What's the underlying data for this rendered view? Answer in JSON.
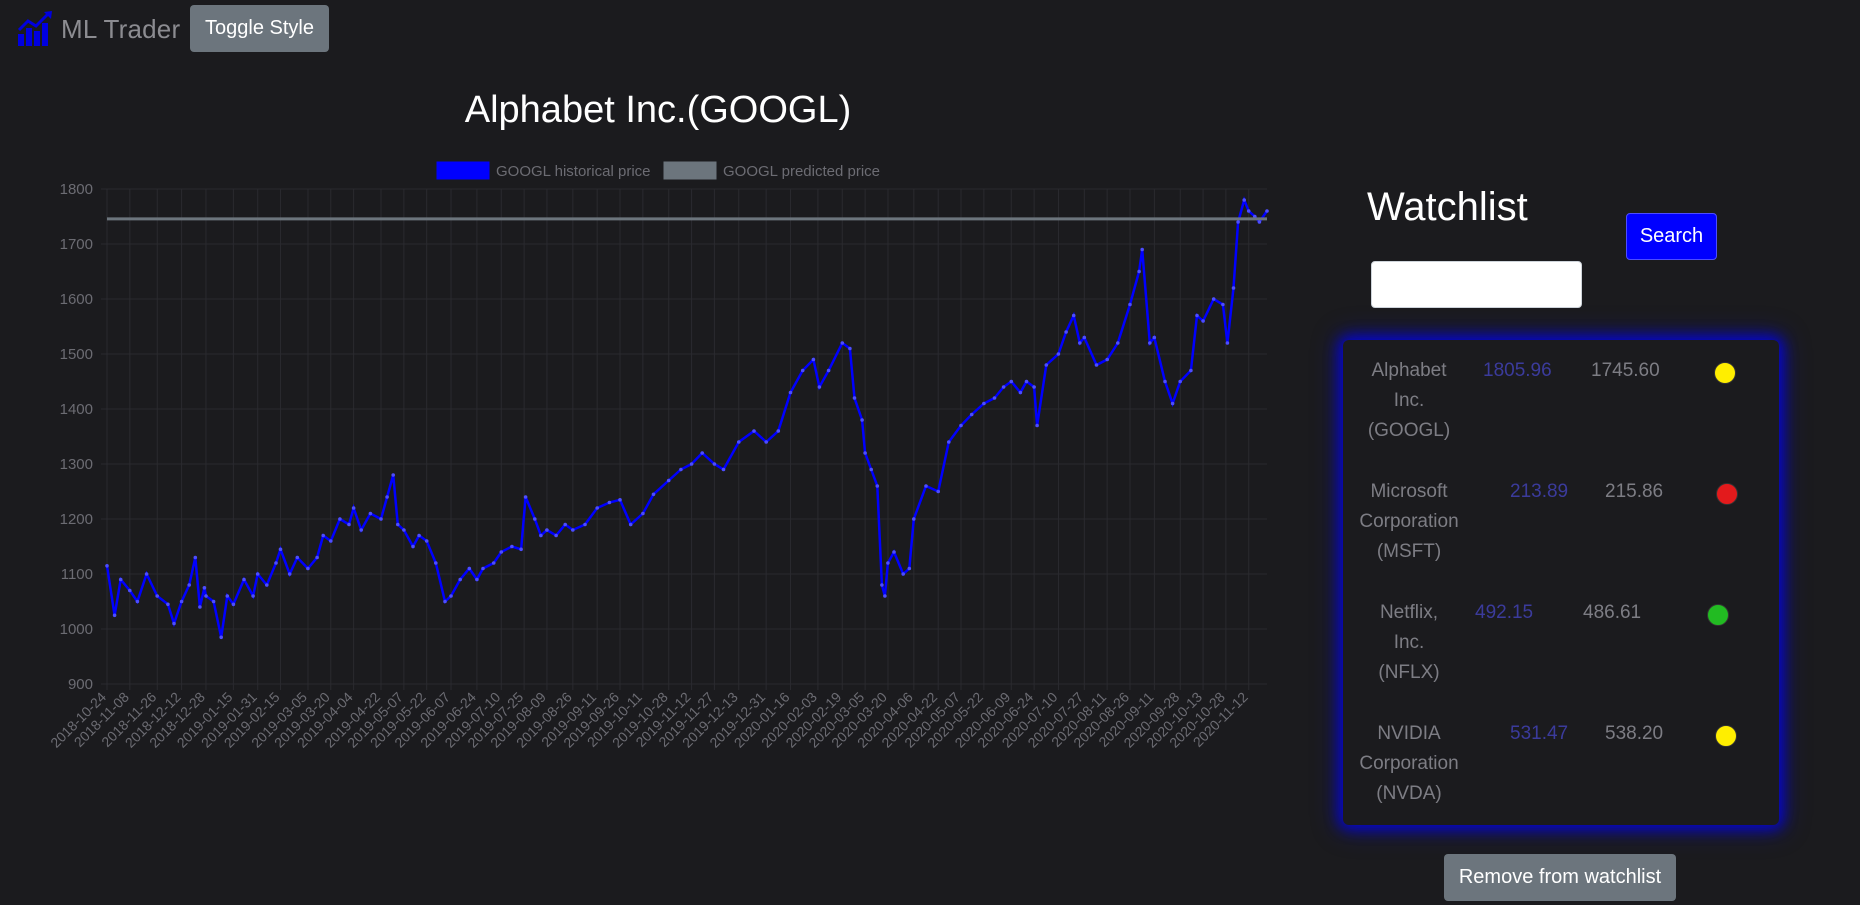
{
  "navbar": {
    "brand_text": "ML Trader",
    "brand_icon": "chart-bar-icon",
    "toggle_label": "Toggle Style"
  },
  "chart_data": {
    "type": "line",
    "title": "Alphabet Inc.(GOOGL)",
    "legend": [
      "GOOGL historical price",
      "GOOGL predicted price"
    ],
    "legend_placement": "top",
    "grid": true,
    "ylim": [
      900,
      1800
    ],
    "yticks": [
      900,
      1000,
      1100,
      1200,
      1300,
      1400,
      1500,
      1600,
      1700,
      1800
    ],
    "xticks": [
      "2018-10-24",
      "2018-11-08",
      "2018-11-26",
      "2018-12-12",
      "2018-12-28",
      "2019-01-15",
      "2019-01-31",
      "2019-02-15",
      "2019-03-05",
      "2019-03-20",
      "2019-04-04",
      "2019-04-22",
      "2019-05-07",
      "2019-05-22",
      "2019-06-07",
      "2019-06-24",
      "2019-07-10",
      "2019-07-25",
      "2019-08-09",
      "2019-08-26",
      "2019-09-11",
      "2019-09-26",
      "2019-10-11",
      "2019-10-28",
      "2019-11-12",
      "2019-11-27",
      "2019-12-13",
      "2019-12-31",
      "2020-01-16",
      "2020-02-03",
      "2020-02-19",
      "2020-03-05",
      "2020-03-20",
      "2020-04-06",
      "2020-04-22",
      "2020-05-07",
      "2020-05-22",
      "2020-06-09",
      "2020-06-24",
      "2020-07-10",
      "2020-07-27",
      "2020-08-11",
      "2020-08-26",
      "2020-09-11",
      "2020-09-28",
      "2020-10-13",
      "2020-10-28",
      "2020-11-12"
    ],
    "series": [
      {
        "name": "GOOGL historical price",
        "color": "#0000ff",
        "points": [
          [
            "2018-10-24",
            1115
          ],
          [
            "2018-10-29",
            1025
          ],
          [
            "2018-11-02",
            1090
          ],
          [
            "2018-11-08",
            1070
          ],
          [
            "2018-11-13",
            1050
          ],
          [
            "2018-11-19",
            1100
          ],
          [
            "2018-11-26",
            1060
          ],
          [
            "2018-12-03",
            1045
          ],
          [
            "2018-12-07",
            1010
          ],
          [
            "2018-12-12",
            1050
          ],
          [
            "2018-12-17",
            1080
          ],
          [
            "2018-12-21",
            1130
          ],
          [
            "2018-12-24",
            1040
          ],
          [
            "2018-12-27",
            1075
          ],
          [
            "2018-12-28",
            1060
          ],
          [
            "2019-01-02",
            1050
          ],
          [
            "2019-01-07",
            985
          ],
          [
            "2019-01-11",
            1060
          ],
          [
            "2019-01-15",
            1045
          ],
          [
            "2019-01-22",
            1090
          ],
          [
            "2019-01-28",
            1060
          ],
          [
            "2019-01-31",
            1100
          ],
          [
            "2019-02-06",
            1080
          ],
          [
            "2019-02-12",
            1120
          ],
          [
            "2019-02-15",
            1145
          ],
          [
            "2019-02-21",
            1100
          ],
          [
            "2019-02-26",
            1130
          ],
          [
            "2019-03-05",
            1110
          ],
          [
            "2019-03-11",
            1130
          ],
          [
            "2019-03-15",
            1170
          ],
          [
            "2019-03-20",
            1160
          ],
          [
            "2019-03-26",
            1200
          ],
          [
            "2019-04-01",
            1190
          ],
          [
            "2019-04-04",
            1220
          ],
          [
            "2019-04-09",
            1180
          ],
          [
            "2019-04-15",
            1210
          ],
          [
            "2019-04-22",
            1200
          ],
          [
            "2019-04-26",
            1240
          ],
          [
            "2019-04-30",
            1280
          ],
          [
            "2019-05-03",
            1190
          ],
          [
            "2019-05-07",
            1180
          ],
          [
            "2019-05-13",
            1150
          ],
          [
            "2019-05-17",
            1170
          ],
          [
            "2019-05-22",
            1160
          ],
          [
            "2019-05-28",
            1120
          ],
          [
            "2019-06-03",
            1050
          ],
          [
            "2019-06-07",
            1060
          ],
          [
            "2019-06-13",
            1090
          ],
          [
            "2019-06-19",
            1110
          ],
          [
            "2019-06-24",
            1090
          ],
          [
            "2019-06-28",
            1110
          ],
          [
            "2019-07-05",
            1120
          ],
          [
            "2019-07-10",
            1140
          ],
          [
            "2019-07-17",
            1150
          ],
          [
            "2019-07-23",
            1145
          ],
          [
            "2019-07-26",
            1240
          ],
          [
            "2019-08-01",
            1200
          ],
          [
            "2019-08-05",
            1170
          ],
          [
            "2019-08-09",
            1180
          ],
          [
            "2019-08-15",
            1170
          ],
          [
            "2019-08-21",
            1190
          ],
          [
            "2019-08-26",
            1180
          ],
          [
            "2019-09-03",
            1190
          ],
          [
            "2019-09-11",
            1220
          ],
          [
            "2019-09-19",
            1230
          ],
          [
            "2019-09-26",
            1235
          ],
          [
            "2019-10-03",
            1190
          ],
          [
            "2019-10-11",
            1210
          ],
          [
            "2019-10-18",
            1245
          ],
          [
            "2019-10-28",
            1270
          ],
          [
            "2019-11-05",
            1290
          ],
          [
            "2019-11-12",
            1300
          ],
          [
            "2019-11-19",
            1320
          ],
          [
            "2019-11-27",
            1300
          ],
          [
            "2019-12-03",
            1290
          ],
          [
            "2019-12-13",
            1340
          ],
          [
            "2019-12-23",
            1360
          ],
          [
            "2019-12-31",
            1340
          ],
          [
            "2020-01-08",
            1360
          ],
          [
            "2020-01-16",
            1430
          ],
          [
            "2020-01-24",
            1470
          ],
          [
            "2020-01-31",
            1490
          ],
          [
            "2020-02-04",
            1440
          ],
          [
            "2020-02-10",
            1470
          ],
          [
            "2020-02-19",
            1520
          ],
          [
            "2020-02-24",
            1510
          ],
          [
            "2020-02-27",
            1420
          ],
          [
            "2020-03-03",
            1380
          ],
          [
            "2020-03-05",
            1320
          ],
          [
            "2020-03-09",
            1290
          ],
          [
            "2020-03-13",
            1260
          ],
          [
            "2020-03-16",
            1080
          ],
          [
            "2020-03-18",
            1060
          ],
          [
            "2020-03-20",
            1120
          ],
          [
            "2020-03-24",
            1140
          ],
          [
            "2020-03-30",
            1100
          ],
          [
            "2020-04-03",
            1110
          ],
          [
            "2020-04-06",
            1200
          ],
          [
            "2020-04-14",
            1260
          ],
          [
            "2020-04-22",
            1250
          ],
          [
            "2020-04-29",
            1340
          ],
          [
            "2020-05-07",
            1370
          ],
          [
            "2020-05-14",
            1390
          ],
          [
            "2020-05-22",
            1410
          ],
          [
            "2020-05-29",
            1420
          ],
          [
            "2020-06-04",
            1440
          ],
          [
            "2020-06-09",
            1450
          ],
          [
            "2020-06-15",
            1430
          ],
          [
            "2020-06-19",
            1450
          ],
          [
            "2020-06-24",
            1440
          ],
          [
            "2020-06-26",
            1370
          ],
          [
            "2020-07-02",
            1480
          ],
          [
            "2020-07-10",
            1500
          ],
          [
            "2020-07-15",
            1540
          ],
          [
            "2020-07-20",
            1570
          ],
          [
            "2020-07-24",
            1520
          ],
          [
            "2020-07-27",
            1530
          ],
          [
            "2020-08-04",
            1480
          ],
          [
            "2020-08-11",
            1490
          ],
          [
            "2020-08-18",
            1520
          ],
          [
            "2020-08-26",
            1590
          ],
          [
            "2020-09-01",
            1650
          ],
          [
            "2020-09-03",
            1690
          ],
          [
            "2020-09-08",
            1520
          ],
          [
            "2020-09-11",
            1530
          ],
          [
            "2020-09-18",
            1450
          ],
          [
            "2020-09-23",
            1410
          ],
          [
            "2020-09-28",
            1450
          ],
          [
            "2020-10-05",
            1470
          ],
          [
            "2020-10-09",
            1570
          ],
          [
            "2020-10-13",
            1560
          ],
          [
            "2020-10-20",
            1600
          ],
          [
            "2020-10-26",
            1590
          ],
          [
            "2020-10-29",
            1520
          ],
          [
            "2020-11-02",
            1620
          ],
          [
            "2020-11-05",
            1740
          ],
          [
            "2020-11-09",
            1780
          ],
          [
            "2020-11-12",
            1760
          ],
          [
            "2020-11-16",
            1750
          ],
          [
            "2020-11-19",
            1740
          ],
          [
            "2020-11-24",
            1760
          ]
        ]
      },
      {
        "name": "GOOGL predicted price",
        "color": "#6c757d",
        "points": [
          [
            "2018-10-24",
            1745.6
          ],
          [
            "2020-11-24",
            1745.6
          ]
        ]
      }
    ]
  },
  "watchlist": {
    "title": "Watchlist",
    "search_value": "",
    "search_label": "Search",
    "items": [
      {
        "name": [
          "Alphabet",
          "Inc.",
          "(GOOGL)"
        ],
        "price": "1805.96",
        "predicted": "1745.60",
        "status_color": "#ffee00"
      },
      {
        "name": [
          "Microsoft",
          "Corporation",
          "(MSFT)"
        ],
        "price": "213.89",
        "predicted": "215.86",
        "status_color": "#e31a1c"
      },
      {
        "name": [
          "Netflix,",
          "Inc.",
          "(NFLX)"
        ],
        "price": "492.15",
        "predicted": "486.61",
        "status_color": "#22bb22"
      },
      {
        "name": [
          "NVIDIA",
          "Corporation",
          "(NVDA)"
        ],
        "price": "531.47",
        "predicted": "538.20",
        "status_color": "#ffee00"
      }
    ],
    "remove_label": "Remove from watchlist"
  }
}
